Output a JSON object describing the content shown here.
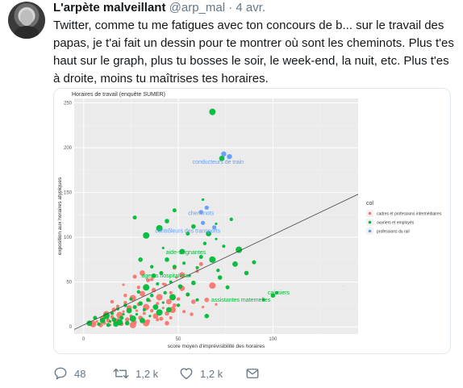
{
  "tweet": {
    "display_name": "L'arpète malveillant",
    "handle": "@arp_mal",
    "dot": "·",
    "date": "4 avr.",
    "text": "Twitter, comme tu me fatigues avec ton concours de b... sur le travail des papas, je t'ai fait un dessin pour te montrer où sont les cheminots. Plus t'es haut sur le graph, plus tu bosses le soir, le week-end, la nuit, etc. Plus t'es à droite, moins tu maîtrises tes horaires.",
    "actions": {
      "replies": "48",
      "retweets": "1,2 k",
      "likes": "1,2 k"
    },
    "icons": {
      "reply": "reply-icon",
      "retweet": "retweet-icon",
      "like": "heart-icon",
      "dm": "envelope-icon",
      "avatar": "avatar"
    }
  },
  "chart_data": {
    "type": "scatter",
    "title": "Horaires de travail (enquête SUMER)",
    "xlabel": "score moyen d'imprévisibilité des horaires",
    "ylabel": "exposition aux horaires atypiques",
    "xlim": [
      -5,
      145
    ],
    "ylim": [
      -8,
      255
    ],
    "xticks": [
      0,
      50,
      100
    ],
    "yticks": [
      0,
      50,
      100,
      150,
      200,
      250
    ],
    "grid": true,
    "legend_title": "col",
    "legend_position": "right",
    "colors": {
      "cadres": "#f8766d",
      "ouvriers": "#00ba38",
      "rail": "#619cff",
      "panel": "#ebebeb",
      "grid": "#ffffff",
      "line": "#444444"
    },
    "regression": {
      "x": [
        -5,
        145
      ],
      "y": [
        -3,
        148
      ]
    },
    "series": [
      {
        "name": "cadres et professions intermédiaires",
        "key": "cadres",
        "points": [
          [
            5,
            3
          ],
          [
            7,
            6
          ],
          [
            9,
            2
          ],
          [
            10,
            9
          ],
          [
            11,
            4
          ],
          [
            12,
            14
          ],
          [
            13,
            7
          ],
          [
            14,
            2
          ],
          [
            15,
            11
          ],
          [
            16,
            19
          ],
          [
            17,
            6
          ],
          [
            18,
            23
          ],
          [
            19,
            13
          ],
          [
            20,
            3
          ],
          [
            21,
            17
          ],
          [
            22,
            27
          ],
          [
            23,
            8
          ],
          [
            24,
            21
          ],
          [
            25,
            12
          ],
          [
            26,
            32
          ],
          [
            27,
            5
          ],
          [
            28,
            18
          ],
          [
            29,
            25
          ],
          [
            30,
            10
          ],
          [
            31,
            37
          ],
          [
            32,
            15
          ],
          [
            33,
            22
          ],
          [
            34,
            6
          ],
          [
            35,
            29
          ],
          [
            36,
            18
          ],
          [
            37,
            41
          ],
          [
            38,
            12
          ],
          [
            39,
            26
          ],
          [
            40,
            33
          ],
          [
            41,
            9
          ],
          [
            42,
            21
          ],
          [
            43,
            47
          ],
          [
            44,
            15
          ],
          [
            45,
            28
          ],
          [
            46,
            38
          ],
          [
            47,
            19
          ],
          [
            48,
            24
          ],
          [
            49,
            55
          ],
          [
            50,
            31
          ],
          [
            52,
            43
          ],
          [
            53,
            17
          ],
          [
            55,
            36
          ],
          [
            58,
            28
          ],
          [
            60,
            62
          ],
          [
            63,
            22
          ],
          [
            65,
            30
          ],
          [
            68,
            46
          ],
          [
            70,
            25
          ],
          [
            18,
            8
          ],
          [
            22,
            35
          ],
          [
            26,
            2
          ],
          [
            33,
            4
          ],
          [
            29,
            44
          ],
          [
            36,
            53
          ],
          [
            44,
            4
          ],
          [
            48,
            66
          ],
          [
            57,
            14
          ],
          [
            27,
            56
          ],
          [
            15,
            28
          ],
          [
            62,
            70
          ],
          [
            31,
            60
          ],
          [
            39,
            8
          ],
          [
            42,
            48
          ],
          [
            52,
            58
          ],
          [
            21,
            47
          ],
          [
            34,
            52
          ],
          [
            46,
            10
          ]
        ],
        "labels": [
          {
            "text": "...",
            "x": 137,
            "y": 45
          }
        ]
      },
      {
        "name": "ouvriers et employés",
        "key": "ouvriers",
        "points": [
          [
            3,
            4
          ],
          [
            6,
            10
          ],
          [
            8,
            3
          ],
          [
            10,
            7
          ],
          [
            12,
            12
          ],
          [
            13,
            2
          ],
          [
            14,
            6
          ],
          [
            15,
            15
          ],
          [
            16,
            8
          ],
          [
            17,
            3
          ],
          [
            18,
            20
          ],
          [
            19,
            5
          ],
          [
            20,
            10
          ],
          [
            21,
            14
          ],
          [
            22,
            24
          ],
          [
            23,
            4
          ],
          [
            24,
            18
          ],
          [
            25,
            31
          ],
          [
            26,
            9
          ],
          [
            27,
            22
          ],
          [
            28,
            14
          ],
          [
            29,
            39
          ],
          [
            30,
            26
          ],
          [
            31,
            7
          ],
          [
            32,
            19
          ],
          [
            33,
            44
          ],
          [
            34,
            30
          ],
          [
            35,
            12
          ],
          [
            36,
            35
          ],
          [
            37,
            57
          ],
          [
            38,
            22
          ],
          [
            39,
            48
          ],
          [
            40,
            16
          ],
          [
            41,
            60
          ],
          [
            42,
            27
          ],
          [
            43,
            38
          ],
          [
            44,
            75
          ],
          [
            45,
            19
          ],
          [
            46,
            50
          ],
          [
            47,
            33
          ],
          [
            48,
            67
          ],
          [
            50,
            24
          ],
          [
            51,
            45
          ],
          [
            52,
            84
          ],
          [
            53,
            71
          ],
          [
            55,
            36
          ],
          [
            56,
            57
          ],
          [
            58,
            49
          ],
          [
            60,
            66
          ],
          [
            62,
            78
          ],
          [
            64,
            93
          ],
          [
            66,
            104
          ],
          [
            68,
            75
          ],
          [
            70,
            115
          ],
          [
            71,
            63
          ],
          [
            73,
            188
          ],
          [
            74,
            90
          ],
          [
            76,
            44
          ],
          [
            78,
            120
          ],
          [
            80,
            70
          ],
          [
            82,
            86
          ],
          [
            86,
            60
          ],
          [
            90,
            72
          ],
          [
            95,
            30
          ],
          [
            100,
            35
          ],
          [
            102,
            38
          ],
          [
            68,
            240
          ],
          [
            70,
            98
          ],
          [
            63,
            142
          ],
          [
            48,
            130
          ],
          [
            44,
            118
          ],
          [
            58,
            112
          ],
          [
            36,
            67
          ],
          [
            40,
            110
          ],
          [
            27,
            122
          ],
          [
            33,
            102
          ],
          [
            55,
            104
          ],
          [
            30,
            75
          ],
          [
            42,
            88
          ],
          [
            60,
            30
          ],
          [
            65,
            12
          ],
          [
            72,
            55
          ]
        ],
        "labels": [
          {
            "text": "aide-soignantes",
            "x": 54,
            "y": 81
          },
          {
            "text": "agents hospitaliers",
            "x": 43,
            "y": 55
          },
          {
            "text": "assistantes maternelles",
            "x": 83,
            "y": 28
          },
          {
            "text": "caissiers",
            "x": 103,
            "y": 36
          },
          {
            "text": "...",
            "x": 68,
            "y": 236
          },
          {
            "text": "...",
            "x": 31,
            "y": 99
          }
        ]
      },
      {
        "name": "professions du rail",
        "key": "rail",
        "points": [
          [
            77,
            190
          ],
          [
            74,
            193
          ],
          [
            65,
            133
          ],
          [
            62,
            128
          ],
          [
            69,
            111
          ],
          [
            63,
            116
          ]
        ],
        "labels": [
          {
            "text": "conducteurs de train",
            "x": 71,
            "y": 182
          },
          {
            "text": "cheminots",
            "x": 62,
            "y": 125
          },
          {
            "text": "contrôleurs des transports",
            "x": 55,
            "y": 105
          }
        ]
      }
    ]
  }
}
